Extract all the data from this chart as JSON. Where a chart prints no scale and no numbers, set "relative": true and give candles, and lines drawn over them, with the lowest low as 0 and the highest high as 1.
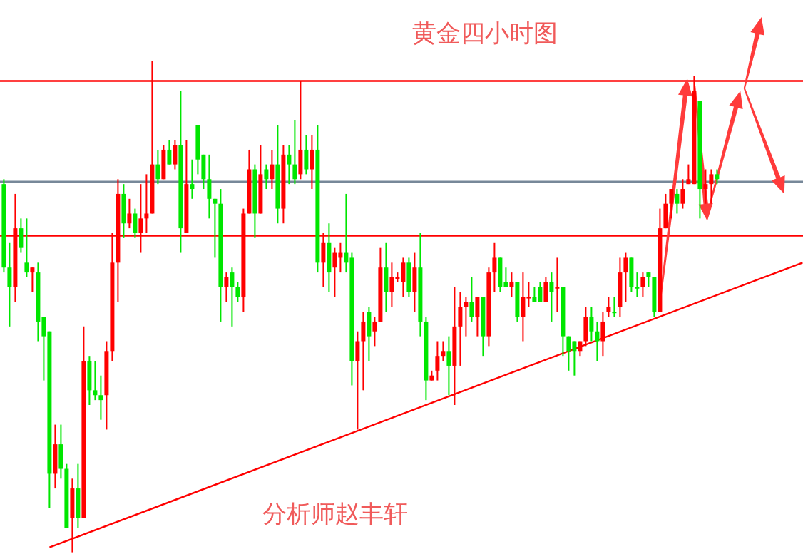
{
  "chart_data": {
    "type": "candlestick",
    "title": "黄金四小时图",
    "annotations": [
      "分析师赵丰轩"
    ],
    "relative": true,
    "categories": [
      null,
      null,
      null,
      null,
      null,
      null,
      null,
      null,
      null,
      null,
      null,
      null,
      null,
      null,
      null,
      null,
      null,
      null,
      null,
      null,
      null,
      null,
      null,
      null,
      null,
      null,
      null,
      null,
      null,
      null,
      null,
      null,
      null,
      null,
      null,
      null,
      null,
      null,
      null,
      null,
      null,
      null,
      null,
      null,
      null,
      null,
      null,
      null,
      null,
      null,
      null,
      null,
      null,
      null,
      null,
      null,
      null,
      null,
      null,
      null,
      null,
      null,
      null,
      null,
      null,
      null,
      null,
      null,
      null,
      null,
      null,
      null,
      null,
      null,
      null,
      null,
      null,
      null,
      null,
      null,
      null,
      null,
      null,
      null,
      null,
      null,
      null,
      null,
      null,
      null,
      null,
      null,
      null,
      null,
      null,
      null,
      null,
      null,
      null,
      null,
      null,
      null,
      null,
      null,
      null,
      null,
      null,
      null,
      null,
      null,
      null,
      null,
      null,
      null,
      null,
      null,
      null,
      null,
      null,
      null,
      null,
      null,
      null,
      null,
      null,
      null,
      null,
      null,
      null,
      null,
      null,
      null,
      null,
      null,
      null,
      null,
      null,
      null,
      null,
      null,
      null
    ],
    "ohlc": [
      [
        0.75,
        0.76,
        0.57,
        0.58
      ],
      [
        0.58,
        0.63,
        0.46,
        0.54
      ],
      [
        0.54,
        0.73,
        0.51,
        0.66
      ],
      [
        0.66,
        0.68,
        0.61,
        0.62
      ],
      [
        0.59,
        0.68,
        0.56,
        0.57
      ],
      [
        0.57,
        0.58,
        0.53,
        0.58
      ],
      [
        0.57,
        0.59,
        0.43,
        0.47
      ],
      [
        0.48,
        0.48,
        0.35,
        0.44
      ],
      [
        0.45,
        0.45,
        0.09,
        0.16
      ],
      [
        0.16,
        0.26,
        0.13,
        0.22
      ],
      [
        0.22,
        0.26,
        0.15,
        0.17
      ],
      [
        0.17,
        0.18,
        0.05,
        0.05
      ],
      [
        0.07,
        0.15,
        0,
        0.13
      ],
      [
        0.13,
        0.18,
        0.05,
        0.07
      ],
      [
        0.07,
        0.46,
        0.07,
        0.39
      ],
      [
        0.39,
        0.4,
        0.3,
        0.33
      ],
      [
        0.33,
        0.39,
        0.31,
        0.32
      ],
      [
        0.32,
        0.36,
        0.27,
        0.31
      ],
      [
        0.32,
        0.43,
        0.25,
        0.41
      ],
      [
        0.41,
        0.65,
        0.39,
        0.59
      ],
      [
        0.59,
        0.76,
        0.51,
        0.73
      ],
      [
        0.73,
        0.75,
        0.64,
        0.67
      ],
      [
        0.67,
        0.72,
        0.66,
        0.69
      ],
      [
        0.69,
        0.7,
        0.64,
        0.65
      ],
      [
        0.65,
        0.75,
        0.61,
        0.68
      ],
      [
        0.68,
        0.77,
        0.65,
        0.69
      ],
      [
        0.69,
        1,
        0.69,
        0.79
      ],
      [
        0.79,
        0.82,
        0.75,
        0.76
      ],
      [
        0.76,
        0.83,
        0.76,
        0.82
      ],
      [
        0.82,
        0.84,
        0.79,
        0.79
      ],
      [
        0.79,
        0.84,
        0.78,
        0.83
      ],
      [
        0.83,
        0.94,
        0.61,
        0.66
      ],
      [
        0.65,
        0.84,
        0.65,
        0.75
      ],
      [
        0.75,
        0.8,
        0.72,
        0.74
      ],
      [
        0.87,
        0.87,
        0.77,
        0.8
      ],
      [
        0.81,
        0.81,
        0.74,
        0.76
      ],
      [
        0.76,
        0.81,
        0.68,
        0.72
      ],
      [
        0.72,
        0.72,
        0.6,
        0.71
      ],
      [
        0.71,
        0.74,
        0.47,
        0.54
      ],
      [
        0.54,
        0.57,
        0.51,
        0.56
      ],
      [
        0.57,
        0.58,
        0.46,
        0.54
      ],
      [
        0.54,
        0.55,
        0.51,
        0.52
      ],
      [
        0.52,
        0.7,
        0.49,
        0.69
      ],
      [
        0.69,
        0.82,
        0.69,
        0.78
      ],
      [
        0.78,
        0.79,
        0.64,
        0.69
      ],
      [
        0.69,
        0.83,
        0.69,
        0.77
      ],
      [
        0.78,
        0.79,
        0.74,
        0.76
      ],
      [
        0.76,
        0.82,
        0.74,
        0.79
      ],
      [
        0.79,
        0.87,
        0.67,
        0.7
      ],
      [
        0.7,
        0.83,
        0.67,
        0.81
      ],
      [
        0.81,
        0.83,
        0.75,
        0.79
      ],
      [
        0.79,
        0.88,
        0.75,
        0.76
      ],
      [
        0.77,
        0.96,
        0.76,
        0.82
      ],
      [
        0.82,
        0.85,
        0.77,
        0.78
      ],
      [
        0.78,
        0.85,
        0.74,
        0.82
      ],
      [
        0.82,
        0.87,
        0.57,
        0.59
      ],
      [
        0.59,
        0.65,
        0.54,
        0.63
      ],
      [
        0.63,
        0.67,
        0.53,
        0.57
      ],
      [
        0.58,
        0.62,
        0.52,
        0.61
      ],
      [
        0.6,
        0.63,
        0.57,
        0.61
      ],
      [
        0.61,
        0.73,
        0.57,
        0.59
      ],
      [
        0.6,
        0.61,
        0.34,
        0.39
      ],
      [
        0.39,
        0.45,
        0.25,
        0.43
      ],
      [
        0.43,
        0.49,
        0.33,
        0.47
      ],
      [
        0.49,
        0.5,
        0.39,
        0.44
      ],
      [
        0.45,
        0.48,
        0.42,
        0.47
      ],
      [
        0.47,
        0.62,
        0.47,
        0.58
      ],
      [
        0.58,
        0.63,
        0.49,
        0.53
      ],
      [
        0.53,
        0.59,
        0.5,
        0.56
      ],
      [
        0.56,
        0.57,
        0.55,
        0.56
      ],
      [
        0.55,
        0.6,
        0.52,
        0.59
      ],
      [
        0.59,
        0.6,
        0.52,
        0.53
      ],
      [
        0.53,
        0.61,
        0.49,
        0.58
      ],
      [
        0.58,
        0.65,
        0.44,
        0.47
      ],
      [
        0.47,
        0.48,
        0.31,
        0.35
      ],
      [
        0.35,
        0.37,
        0.35,
        0.36
      ],
      [
        0.37,
        0.43,
        0.35,
        0.4
      ],
      [
        0.4,
        0.43,
        0.39,
        0.41
      ],
      [
        0.41,
        0.44,
        0.32,
        0.38
      ],
      [
        0.38,
        0.54,
        0.3,
        0.46
      ],
      [
        0.46,
        0.53,
        0.38,
        0.5
      ],
      [
        0.5,
        0.52,
        0.44,
        0.51
      ],
      [
        0.51,
        0.56,
        0.47,
        0.48
      ],
      [
        0.48,
        0.52,
        0.44,
        0.52
      ],
      [
        0.52,
        0.52,
        0.4,
        0.44
      ],
      [
        0.44,
        0.58,
        0.42,
        0.57
      ],
      [
        0.57,
        0.63,
        0.53,
        0.6
      ],
      [
        0.6,
        0.6,
        0.53,
        0.54
      ],
      [
        0.55,
        0.58,
        0.54,
        0.54
      ],
      [
        0.54,
        0.57,
        0.52,
        0.55
      ],
      [
        0.55,
        0.55,
        0.47,
        0.48
      ],
      [
        0.48,
        0.57,
        0.43,
        0.52
      ],
      [
        0.52,
        0.55,
        0.5,
        0.52
      ],
      [
        0.52,
        0.54,
        0.51,
        0.51
      ],
      [
        0.54,
        0.55,
        0.51,
        0.51
      ],
      [
        0.51,
        0.56,
        0.51,
        0.55
      ],
      [
        0.55,
        0.57,
        0.47,
        0.53
      ],
      [
        0.54,
        0.6,
        0.49,
        0.54
      ],
      [
        0.54,
        0.54,
        0.4,
        0.44
      ],
      [
        0.44,
        0.44,
        0.37,
        0.41
      ],
      [
        0.43,
        0.43,
        0.36,
        0.41
      ],
      [
        0.41,
        0.43,
        0.4,
        0.43
      ],
      [
        0.43,
        0.5,
        0.42,
        0.48
      ],
      [
        0.48,
        0.5,
        0.43,
        0.45
      ],
      [
        0.45,
        0.47,
        0.39,
        0.43
      ],
      [
        0.43,
        0.49,
        0.4,
        0.47
      ],
      [
        0.49,
        0.52,
        0.48,
        0.5
      ],
      [
        0.49,
        0.52,
        0.48,
        0.49
      ],
      [
        0.5,
        0.6,
        0.48,
        0.57
      ],
      [
        0.57,
        0.61,
        0.51,
        0.6
      ],
      [
        0.6,
        0.6,
        0.53,
        0.54
      ],
      [
        0.54,
        0.57,
        0.52,
        0.54
      ],
      [
        0.54,
        0.57,
        0.52,
        0.56
      ],
      [
        0.57,
        0.57,
        0.54,
        0.56
      ],
      [
        0.56,
        0.56,
        0.48,
        0.49
      ],
      [
        0.49,
        0.7,
        0.49,
        0.66
      ],
      [
        0.66,
        0.73,
        0.66,
        0.71
      ],
      [
        0.71,
        0.74,
        0.68,
        0.74
      ],
      [
        0.73,
        0.74,
        0.69,
        0.71
      ],
      [
        0.71,
        0.76,
        0.7,
        0.74
      ],
      [
        0.75,
        0.79,
        0.75,
        0.76
      ],
      [
        0.75,
        0.97,
        0.75,
        0.94
      ],
      [
        0.92,
        0.92,
        0.68,
        0.74
      ],
      [
        0.74,
        0.78,
        0.71,
        0.75
      ],
      [
        0.75,
        0.78,
        0.71,
        0.77
      ],
      [
        0.77,
        0.78,
        0.75,
        0.76
      ],
      null,
      null,
      null,
      null,
      null,
      null,
      null,
      null,
      null,
      null,
      null,
      null,
      null,
      null,
      null
    ],
    "colors": [
      "#00e600",
      "#00e600",
      "#ff0000",
      "#00e600",
      "#00e600",
      "#ff0000",
      "#00e600",
      "#00e600",
      "#00e600",
      "#ff0000",
      "#00e600",
      "#00e600",
      "#ff0000",
      "#00e600",
      "#ff0000",
      "#00e600",
      "#00e600",
      "#00e600",
      "#ff0000",
      "#ff0000",
      "#ff0000",
      "#00e600",
      "#ff0000",
      "#00e600",
      "#ff0000",
      "#ff0000",
      "#ff0000",
      "#00e600",
      "#ff0000",
      "#00e600",
      "#ff0000",
      "#00e600",
      "#ff0000",
      "#00e600",
      "#00e600",
      "#00e600",
      "#00e600",
      "#00e600",
      "#00e600",
      "#ff0000",
      "#00e600",
      "#00e600",
      "#ff0000",
      "#ff0000",
      "#00e600",
      "#ff0000",
      "#00e600",
      "#ff0000",
      "#00e600",
      "#ff0000",
      "#00e600",
      "#00e600",
      "#ff0000",
      "#00e600",
      "#ff0000",
      "#00e600",
      "#ff0000",
      "#00e600",
      "#ff0000",
      "#ff0000",
      "#00e600",
      "#00e600",
      "#ff0000",
      "#ff0000",
      "#00e600",
      "#ff0000",
      "#ff0000",
      "#00e600",
      "#ff0000",
      "#ff0000",
      "#ff0000",
      "#00e600",
      "#ff0000",
      "#00e600",
      "#00e600",
      "#ff0000",
      "#ff0000",
      "#ff0000",
      "#00e600",
      "#ff0000",
      "#ff0000",
      "#ff0000",
      "#00e600",
      "#ff0000",
      "#00e600",
      "#ff0000",
      "#ff0000",
      "#00e600",
      "#00e600",
      "#ff0000",
      "#00e600",
      "#ff0000",
      "#ff0000",
      "#00e600",
      "#00e600",
      "#ff0000",
      "#00e600",
      "#ff0000",
      "#00e600",
      "#00e600",
      "#00e600",
      "#ff0000",
      "#ff0000",
      "#00e600",
      "#00e600",
      "#ff0000",
      "#ff0000",
      "#00e600",
      "#ff0000",
      "#ff0000",
      "#00e600",
      "#00e600",
      "#ff0000",
      "#00e600",
      "#00e600",
      "#ff0000",
      "#ff0000",
      "#ff0000",
      "#00e600",
      "#ff0000",
      "#ff0000",
      "#ff0000",
      "#00e600",
      "#ff0000",
      "#ff0000",
      "#00e600",
      null,
      null,
      null,
      null,
      null,
      null,
      null,
      null,
      null,
      null,
      null,
      null,
      null,
      null,
      null
    ],
    "series": [
      {
        "type": "line",
        "color": "#ff0000",
        "values": [
          null,
          null,
          null,
          null,
          null,
          null,
          null,
          null,
          0.01,
          null,
          null,
          null,
          null,
          null,
          null,
          null,
          null,
          null,
          null,
          null,
          null,
          null,
          null,
          null,
          null,
          null,
          null,
          null,
          null,
          null,
          null,
          null,
          null,
          null,
          null,
          null,
          null,
          null,
          null,
          null,
          null,
          null,
          null,
          null,
          null,
          null,
          null,
          null,
          null,
          null,
          null,
          null,
          null,
          null,
          null,
          null,
          null,
          null,
          null,
          null,
          null,
          null,
          null,
          null,
          null,
          null,
          null,
          null,
          null,
          null,
          null,
          null,
          null,
          null,
          null,
          null,
          null,
          null,
          null,
          null,
          null,
          null,
          null,
          null,
          null,
          null,
          null,
          null,
          null,
          null,
          null,
          null,
          null,
          null,
          null,
          null,
          null,
          null,
          null,
          null,
          null,
          null,
          null,
          null,
          null,
          null,
          null,
          null,
          null,
          null,
          null,
          null,
          null,
          null,
          null,
          null,
          null,
          null,
          null,
          null,
          null,
          null,
          null,
          null,
          null,
          null,
          null,
          null,
          null,
          null,
          null,
          null,
          null,
          null,
          null,
          null,
          null,
          null,
          null,
          null,
          0.59
        ]
      }
    ],
    "ref_lines": [
      {
        "axis": "y",
        "value": 0.96,
        "color": "#ff0000"
      },
      {
        "axis": "y",
        "value": 0.755,
        "color": "#778899"
      },
      {
        "axis": "y",
        "value": 0.645,
        "color": "#ff0000"
      }
    ]
  }
}
